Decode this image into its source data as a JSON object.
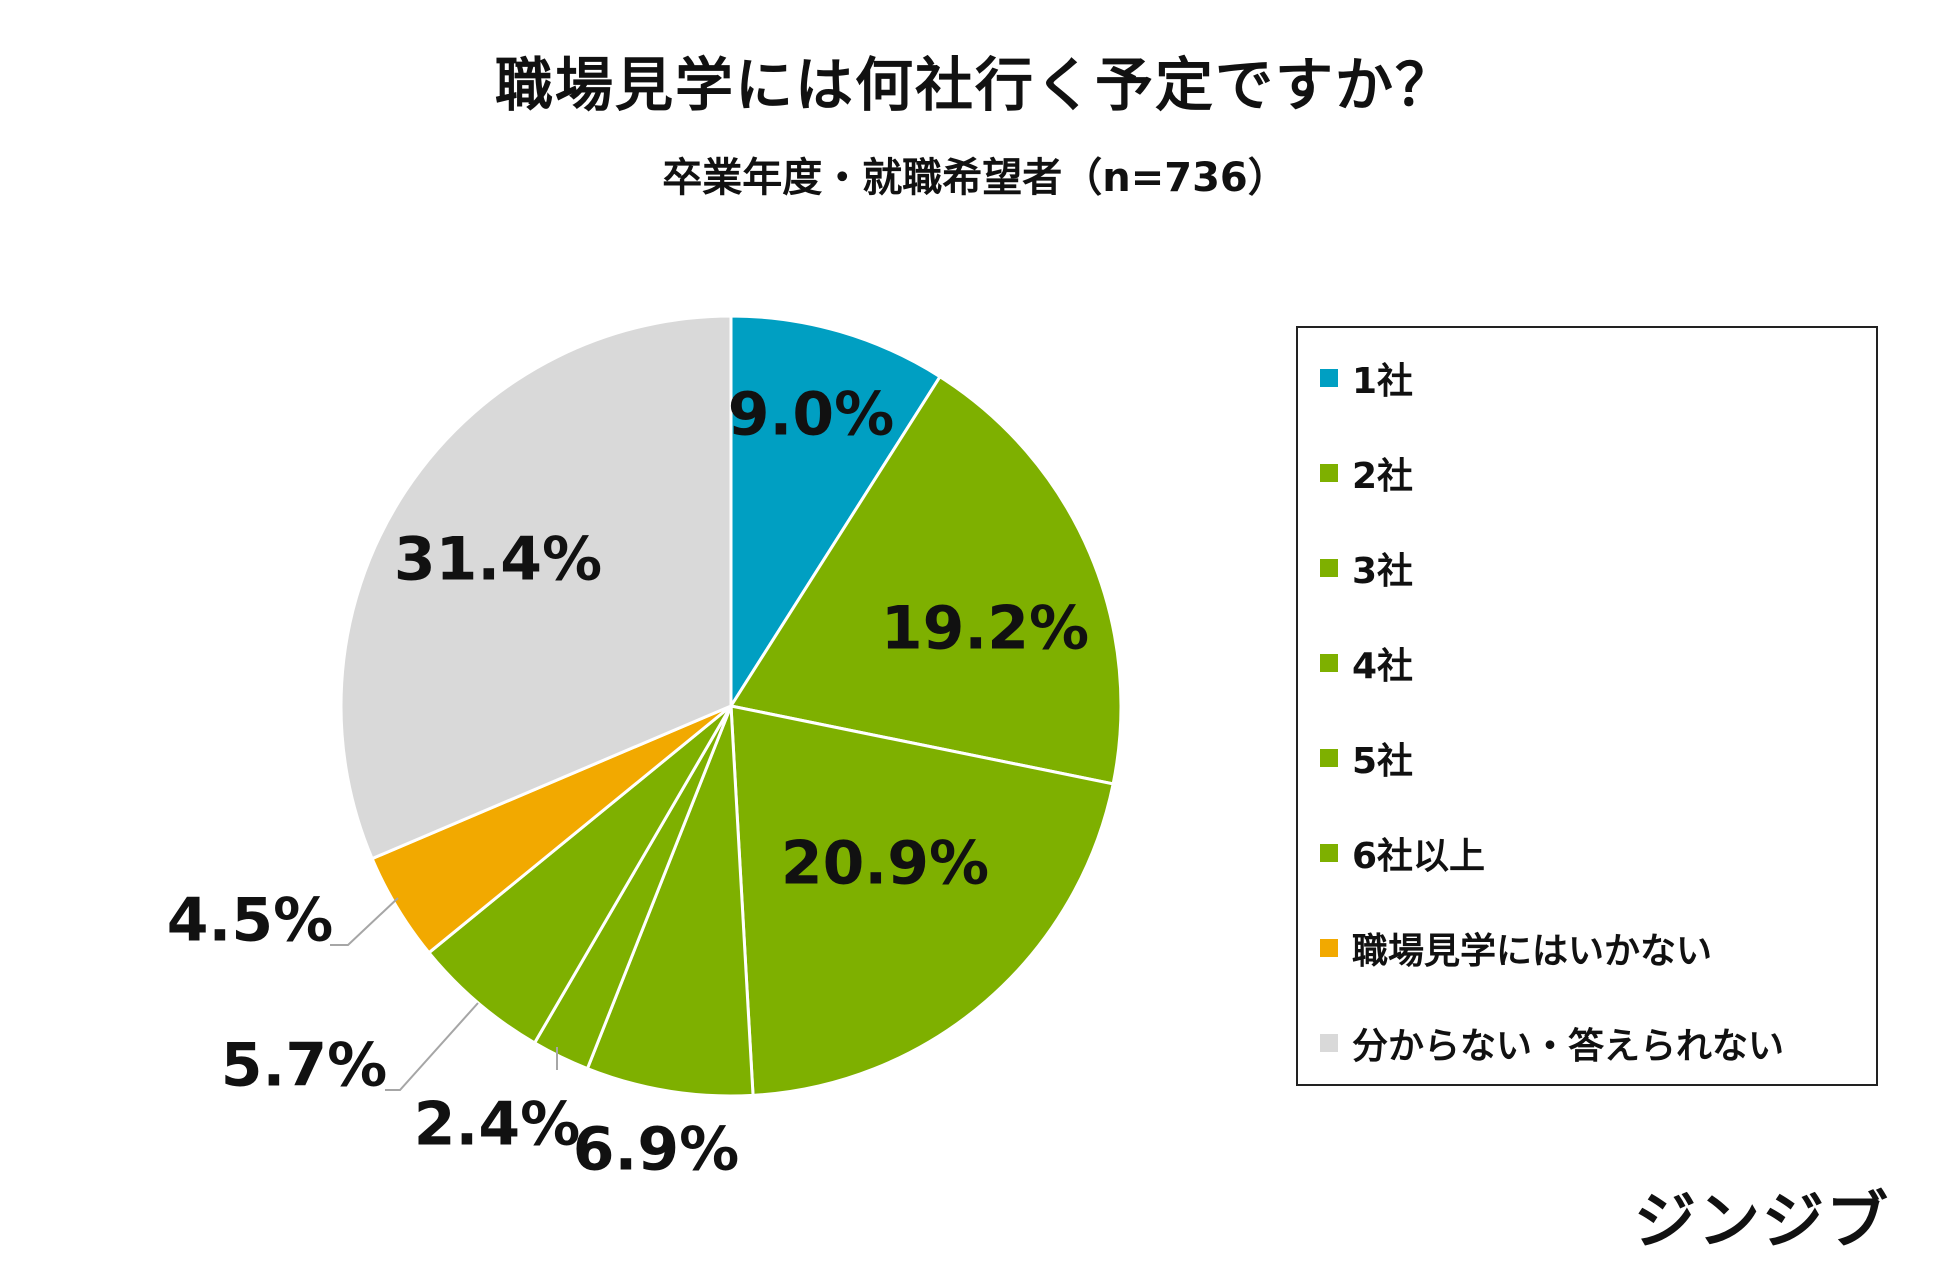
{
  "chart_data": {
    "type": "pie",
    "title": "職場見学には何社行く予定ですか？",
    "subtitle": "卒業年度・就職希望者（n=736）",
    "legend_position": "right",
    "slices": [
      {
        "label": "1社",
        "value": 9.0,
        "value_label": "9.0%",
        "color": "#009fc2"
      },
      {
        "label": "2社",
        "value": 19.2,
        "value_label": "19.2%",
        "color": "#7eb000"
      },
      {
        "label": "3社",
        "value": 20.9,
        "value_label": "20.9%",
        "color": "#7eb000"
      },
      {
        "label": "4社",
        "value": 6.9,
        "value_label": "6.9%",
        "color": "#7eb000"
      },
      {
        "label": "5社",
        "value": 2.4,
        "value_label": "2.4%",
        "color": "#7eb000"
      },
      {
        "label": "6社以上",
        "value": 5.7,
        "value_label": "5.7%",
        "color": "#7eb000"
      },
      {
        "label": "職場見学にはいかない",
        "value": 4.5,
        "value_label": "4.5%",
        "color": "#f2a900"
      },
      {
        "label": "分からない・答えられない",
        "value": 31.4,
        "value_label": "31.4%",
        "color": "#d9d9d9"
      }
    ]
  },
  "brand": "ジンジブ"
}
